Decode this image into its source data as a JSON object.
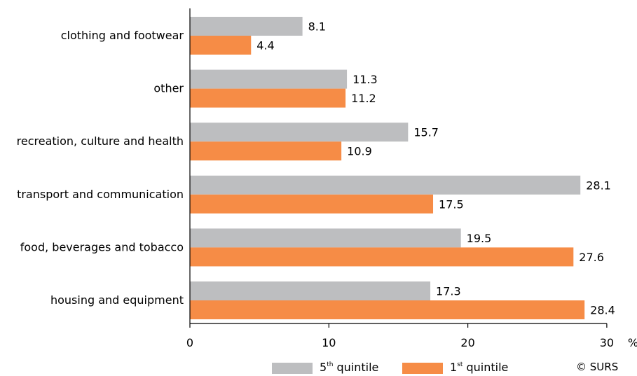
{
  "chart_data": {
    "type": "bar",
    "orientation": "horizontal",
    "categories": [
      "clothing and footwear",
      "other",
      "recreation, culture and health",
      "transport and communication",
      "food, beverages and tobacco",
      "housing and equipment"
    ],
    "series": [
      {
        "name_main": "5",
        "name_sup": "th",
        "name_rest": " quintile",
        "color": "#bdbec0",
        "values": [
          8.1,
          11.3,
          15.7,
          28.1,
          19.5,
          17.3
        ]
      },
      {
        "name_main": "1",
        "name_sup": "st",
        "name_rest": " quintile",
        "color": "#f68c46",
        "values": [
          4.4,
          11.2,
          10.9,
          17.5,
          27.6,
          28.4
        ]
      }
    ],
    "xlim": [
      0,
      30
    ],
    "xticks": [
      "0",
      "10",
      "20",
      "30"
    ],
    "x_unit": "%",
    "grid": false,
    "legend_position": "bottom"
  },
  "credit": "© SURS"
}
